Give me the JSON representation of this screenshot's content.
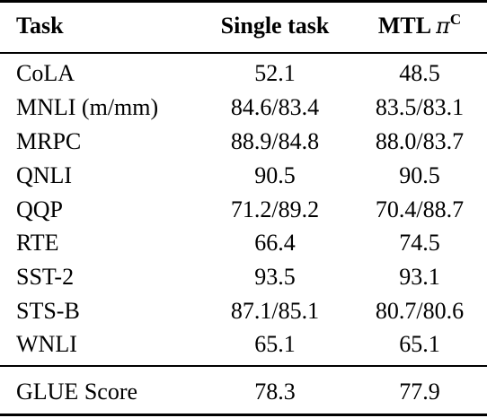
{
  "table": {
    "headers": {
      "task": "Task",
      "single": "Single task",
      "mtl_prefix": "MTL ",
      "mtl_pi": "π",
      "mtl_sup": "C"
    },
    "rows": [
      {
        "task": "CoLA",
        "single": "52.1",
        "mtl": "48.5"
      },
      {
        "task": "MNLI (m/mm)",
        "single": "84.6/83.4",
        "mtl": "83.5/83.1"
      },
      {
        "task": "MRPC",
        "single": "88.9/84.8",
        "mtl": "88.0/83.7"
      },
      {
        "task": "QNLI",
        "single": "90.5",
        "mtl": "90.5"
      },
      {
        "task": "QQP",
        "single": "71.2/89.2",
        "mtl": "70.4/88.7"
      },
      {
        "task": "RTE",
        "single": "66.4",
        "mtl": "74.5"
      },
      {
        "task": "SST-2",
        "single": "93.5",
        "mtl": "93.1"
      },
      {
        "task": "STS-B",
        "single": "87.1/85.1",
        "mtl": "80.7/80.6"
      },
      {
        "task": "WNLI",
        "single": "65.1",
        "mtl": "65.1"
      }
    ],
    "footer": {
      "task": "GLUE Score",
      "single": "78.3",
      "mtl": "77.9"
    }
  }
}
